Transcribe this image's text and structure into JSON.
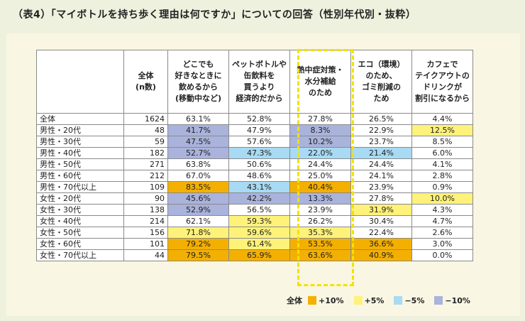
{
  "title": "（表4）「マイボトルを持ち歩く理由は何ですか」についての回答（性別年代別・抜粋）",
  "table": {
    "headers": [
      "",
      "全体\n(n数)",
      "どこでも\n好きなときに\n飲めるから\n(移動中など)",
      "ペットボトルや\n缶飲料を\n買うより\n経済的だから",
      "熱中症対策・\n水分補給\nのため",
      "エコ（環境）\nのため、\nゴミ削減の\nため",
      "カフェで\nテイクアウトの\nドリンクが\n割引になるから"
    ],
    "rows": [
      {
        "label": "全体",
        "n": "1624",
        "values": [
          "63.1%",
          "52.8%",
          "27.8%",
          "26.5%",
          "4.4%"
        ],
        "colors": [
          "",
          "",
          "",
          "",
          ""
        ]
      },
      {
        "label": "男性・20代",
        "n": "48",
        "values": [
          "41.7%",
          "47.9%",
          "8.3%",
          "22.9%",
          "12.5%"
        ],
        "colors": [
          "blue",
          "",
          "blue",
          "",
          "yellow"
        ]
      },
      {
        "label": "男性・30代",
        "n": "59",
        "values": [
          "47.5%",
          "57.6%",
          "10.2%",
          "23.7%",
          "8.5%"
        ],
        "colors": [
          "blue",
          "",
          "blue",
          "",
          ""
        ]
      },
      {
        "label": "男性・40代",
        "n": "182",
        "values": [
          "52.7%",
          "47.3%",
          "22.0%",
          "21.4%",
          "6.0%"
        ],
        "colors": [
          "blue",
          "lblue",
          "lblue",
          "lblue",
          ""
        ]
      },
      {
        "label": "男性・50代",
        "n": "271",
        "values": [
          "63.8%",
          "50.6%",
          "24.4%",
          "24.4%",
          "4.1%"
        ],
        "colors": [
          "",
          "",
          "",
          "",
          ""
        ]
      },
      {
        "label": "男性・60代",
        "n": "212",
        "values": [
          "67.0%",
          "48.6%",
          "25.0%",
          "24.1%",
          "2.8%"
        ],
        "colors": [
          "",
          "",
          "",
          "",
          ""
        ]
      },
      {
        "label": "男性・70代以上",
        "n": "109",
        "values": [
          "83.5%",
          "43.1%",
          "40.4%",
          "23.9%",
          "0.9%"
        ],
        "colors": [
          "orange",
          "lblue",
          "orange",
          "",
          ""
        ]
      },
      {
        "label": "女性・20代",
        "n": "90",
        "values": [
          "45.6%",
          "42.2%",
          "13.3%",
          "27.8%",
          "10.0%"
        ],
        "colors": [
          "blue",
          "blue",
          "blue",
          "",
          "yellow"
        ]
      },
      {
        "label": "女性・30代",
        "n": "138",
        "values": [
          "52.9%",
          "56.5%",
          "23.9%",
          "31.9%",
          "4.3%"
        ],
        "colors": [
          "blue",
          "",
          "",
          "yellow",
          ""
        ]
      },
      {
        "label": "女性・40代",
        "n": "214",
        "values": [
          "62.1%",
          "59.3%",
          "26.2%",
          "30.4%",
          "4.7%"
        ],
        "colors": [
          "",
          "yellow",
          "",
          "",
          ""
        ]
      },
      {
        "label": "女性・50代",
        "n": "156",
        "values": [
          "71.8%",
          "59.6%",
          "35.3%",
          "22.4%",
          "2.6%"
        ],
        "colors": [
          "yellow",
          "yellow",
          "yellow",
          "",
          ""
        ]
      },
      {
        "label": "女性・60代",
        "n": "101",
        "values": [
          "79.2%",
          "61.4%",
          "53.5%",
          "36.6%",
          "3.0%"
        ],
        "colors": [
          "orange",
          "yellow",
          "orange",
          "orange",
          ""
        ]
      },
      {
        "label": "女性・70代以上",
        "n": "44",
        "values": [
          "79.5%",
          "65.9%",
          "63.6%",
          "40.9%",
          "0.0%"
        ],
        "colors": [
          "orange",
          "orange",
          "orange",
          "orange",
          ""
        ]
      }
    ]
  },
  "legend": {
    "label": "全体",
    "items": [
      {
        "text": "+10%",
        "color": "#f4b000"
      },
      {
        "text": "+5%",
        "color": "#fff27a"
      },
      {
        "text": "−5%",
        "color": "#a8daf3"
      },
      {
        "text": "−10%",
        "color": "#aab3dc"
      }
    ]
  },
  "colors": {
    "orange": "#f4b000",
    "yellow": "#fff27a",
    "lblue": "#a8daf3",
    "blue": "#aab3dc",
    "highlight_border": "#f2e200"
  }
}
